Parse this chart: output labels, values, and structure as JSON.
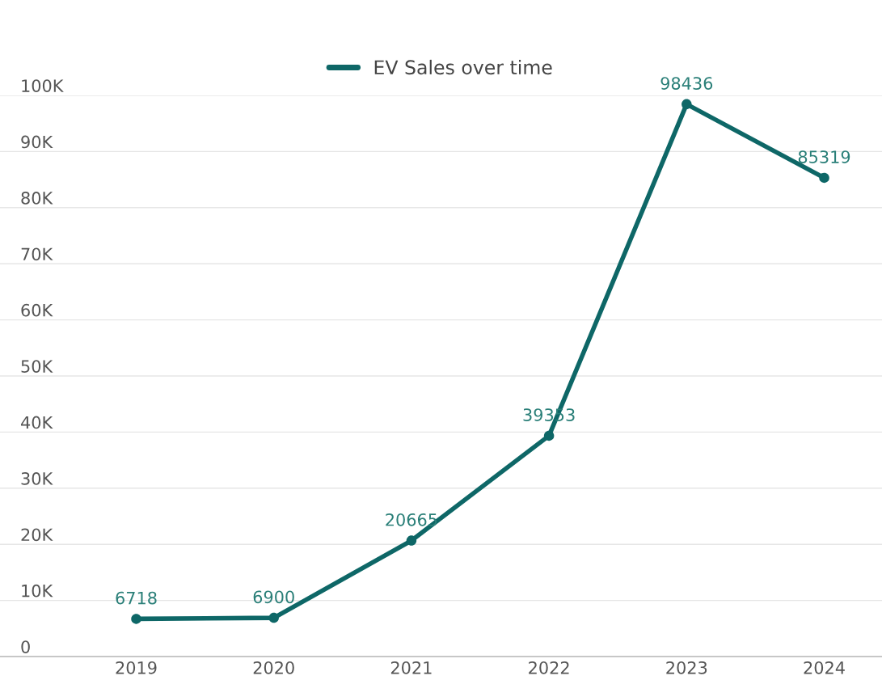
{
  "chart_data": {
    "type": "line",
    "categories": [
      "2019",
      "2020",
      "2021",
      "2022",
      "2023",
      "2024"
    ],
    "series": [
      {
        "name": "EV Sales over time",
        "color": "#0e6767",
        "values": [
          6718,
          6900,
          20665,
          39353,
          98436,
          85319
        ]
      }
    ],
    "ylim": [
      0,
      100000
    ],
    "yticks": [
      0,
      {
        "value": 10000,
        "label": "10K"
      },
      {
        "value": 20000,
        "label": "20K"
      },
      {
        "value": 30000,
        "label": "30K"
      },
      {
        "value": 40000,
        "label": "40K"
      },
      {
        "value": 50000,
        "label": "50K"
      },
      {
        "value": 60000,
        "label": "60K"
      },
      {
        "value": 70000,
        "label": "70K"
      },
      {
        "value": 80000,
        "label": "80K"
      },
      {
        "value": 90000,
        "label": "90K"
      },
      {
        "value": 100000,
        "label": "100K"
      }
    ],
    "grid": "y",
    "legend": "top",
    "marker": "circle",
    "line_style": "solid",
    "data_labels": true
  }
}
